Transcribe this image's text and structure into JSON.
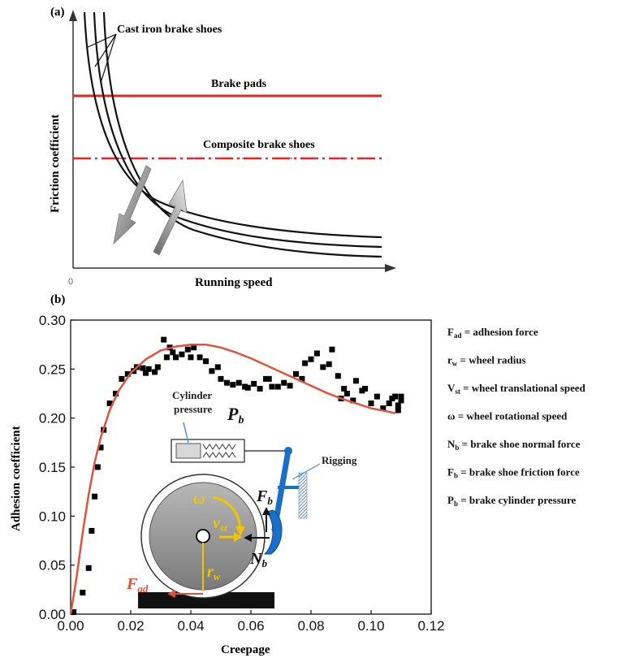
{
  "chart_data": [
    {
      "panel": "(a)",
      "type": "line",
      "xlabel": "Running speed",
      "ylabel": "Friction coefficient",
      "origin_label": "0",
      "series": [
        {
          "name": "Cast iron brake shoes",
          "style": "solid",
          "color": "#111111",
          "values": "three decreasing hyperbolic curves"
        },
        {
          "name": "Brake pads",
          "style": "solid",
          "color": "#e8221c",
          "values": "constant"
        },
        {
          "name": "Composite brake shoes",
          "style": "dash-dot",
          "color": "#e8221c",
          "values": "constant"
        }
      ]
    },
    {
      "panel": "(b)",
      "type": "scatter",
      "xlabel": "Creepage",
      "ylabel": "Adhesion coefficient",
      "xlim": [
        0.0,
        0.12
      ],
      "ylim": [
        0.0,
        0.3
      ],
      "xticks": [
        "0.00",
        "0.02",
        "0.04",
        "0.06",
        "0.08",
        "0.10",
        "0.12"
      ],
      "yticks": [
        "0.00",
        "0.05",
        "0.10",
        "0.15",
        "0.20",
        "0.25",
        "0.30"
      ],
      "points": [
        [
          0.001,
          0.002
        ],
        [
          0.004,
          0.022
        ],
        [
          0.006,
          0.047
        ],
        [
          0.007,
          0.085
        ],
        [
          0.008,
          0.12
        ],
        [
          0.009,
          0.15
        ],
        [
          0.01,
          0.17
        ],
        [
          0.011,
          0.188
        ],
        [
          0.013,
          0.215
        ],
        [
          0.015,
          0.225
        ],
        [
          0.017,
          0.24
        ],
        [
          0.019,
          0.245
        ],
        [
          0.021,
          0.248
        ],
        [
          0.022,
          0.252
        ],
        [
          0.024,
          0.251
        ],
        [
          0.025,
          0.246
        ],
        [
          0.026,
          0.25
        ],
        [
          0.028,
          0.247
        ],
        [
          0.029,
          0.252
        ],
        [
          0.031,
          0.28
        ],
        [
          0.032,
          0.262
        ],
        [
          0.033,
          0.272
        ],
        [
          0.034,
          0.267
        ],
        [
          0.035,
          0.262
        ],
        [
          0.037,
          0.265
        ],
        [
          0.039,
          0.27
        ],
        [
          0.04,
          0.262
        ],
        [
          0.041,
          0.272
        ],
        [
          0.043,
          0.262
        ],
        [
          0.045,
          0.258
        ],
        [
          0.047,
          0.248
        ],
        [
          0.049,
          0.252
        ],
        [
          0.05,
          0.24
        ],
        [
          0.052,
          0.236
        ],
        [
          0.054,
          0.234
        ],
        [
          0.056,
          0.236
        ],
        [
          0.058,
          0.232
        ],
        [
          0.059,
          0.231
        ],
        [
          0.061,
          0.235
        ],
        [
          0.063,
          0.23
        ],
        [
          0.065,
          0.24
        ],
        [
          0.066,
          0.24
        ],
        [
          0.067,
          0.232
        ],
        [
          0.069,
          0.232
        ],
        [
          0.071,
          0.236
        ],
        [
          0.073,
          0.233
        ],
        [
          0.075,
          0.245
        ],
        [
          0.077,
          0.24
        ],
        [
          0.078,
          0.256
        ],
        [
          0.08,
          0.26
        ],
        [
          0.082,
          0.266
        ],
        [
          0.084,
          0.252
        ],
        [
          0.086,
          0.255
        ],
        [
          0.087,
          0.27
        ],
        [
          0.089,
          0.243
        ],
        [
          0.09,
          0.22
        ],
        [
          0.091,
          0.23
        ],
        [
          0.092,
          0.225
        ],
        [
          0.094,
          0.218
        ],
        [
          0.095,
          0.238
        ],
        [
          0.097,
          0.228
        ],
        [
          0.098,
          0.23
        ],
        [
          0.1,
          0.215
        ],
        [
          0.102,
          0.222
        ],
        [
          0.104,
          0.21
        ],
        [
          0.106,
          0.215
        ],
        [
          0.107,
          0.22
        ],
        [
          0.108,
          0.222
        ],
        [
          0.109,
          0.213
        ],
        [
          0.11,
          0.218
        ],
        [
          0.11,
          0.222
        ],
        [
          0.109,
          0.208
        ]
      ],
      "fit_curve": {
        "color": "#e0533a",
        "points": [
          [
            0.0,
            0.0
          ],
          [
            0.002,
            0.038
          ],
          [
            0.004,
            0.083
          ],
          [
            0.006,
            0.122
          ],
          [
            0.008,
            0.155
          ],
          [
            0.01,
            0.18
          ],
          [
            0.013,
            0.208
          ],
          [
            0.016,
            0.228
          ],
          [
            0.02,
            0.246
          ],
          [
            0.025,
            0.26
          ],
          [
            0.03,
            0.269
          ],
          [
            0.035,
            0.273
          ],
          [
            0.04,
            0.275
          ],
          [
            0.045,
            0.275
          ],
          [
            0.05,
            0.272
          ],
          [
            0.055,
            0.267
          ],
          [
            0.06,
            0.261
          ],
          [
            0.065,
            0.254
          ],
          [
            0.07,
            0.247
          ],
          [
            0.075,
            0.24
          ],
          [
            0.08,
            0.233
          ],
          [
            0.085,
            0.226
          ],
          [
            0.09,
            0.22
          ],
          [
            0.095,
            0.215
          ],
          [
            0.1,
            0.21
          ],
          [
            0.105,
            0.207
          ],
          [
            0.108,
            0.205
          ]
        ]
      },
      "legend": [
        {
          "sym": "F",
          "sub": "ad",
          "desc": " = adhesion force"
        },
        {
          "sym": "r",
          "sub": "w",
          "desc": " = wheel radius"
        },
        {
          "sym": "V",
          "sub": "st",
          "desc": " = wheel translational speed"
        },
        {
          "sym": "ω",
          "sub": "",
          "desc": " = wheel rotational speed"
        },
        {
          "sym": "N",
          "sub": "b",
          "desc": " = brake shoe normal force"
        },
        {
          "sym": "F",
          "sub": "b",
          "desc": " = brake shoe friction force"
        },
        {
          "sym": "P",
          "sub": "b",
          "desc": " = brake cylinder pressure"
        }
      ]
    }
  ],
  "diagram": {
    "cylinder_label_1": "Cylinder",
    "cylinder_label_2": "pressure",
    "pb": {
      "main": "P",
      "sub": "b"
    },
    "rigging": "Rigging",
    "omega": "ω",
    "vst": {
      "main": "v",
      "sub": "st"
    },
    "fb": {
      "main": "F",
      "sub": "b"
    },
    "nb": {
      "main": "N",
      "sub": "b"
    },
    "rw": {
      "main": "r",
      "sub": "w"
    },
    "fad": {
      "main": "F",
      "sub": "ad"
    }
  }
}
